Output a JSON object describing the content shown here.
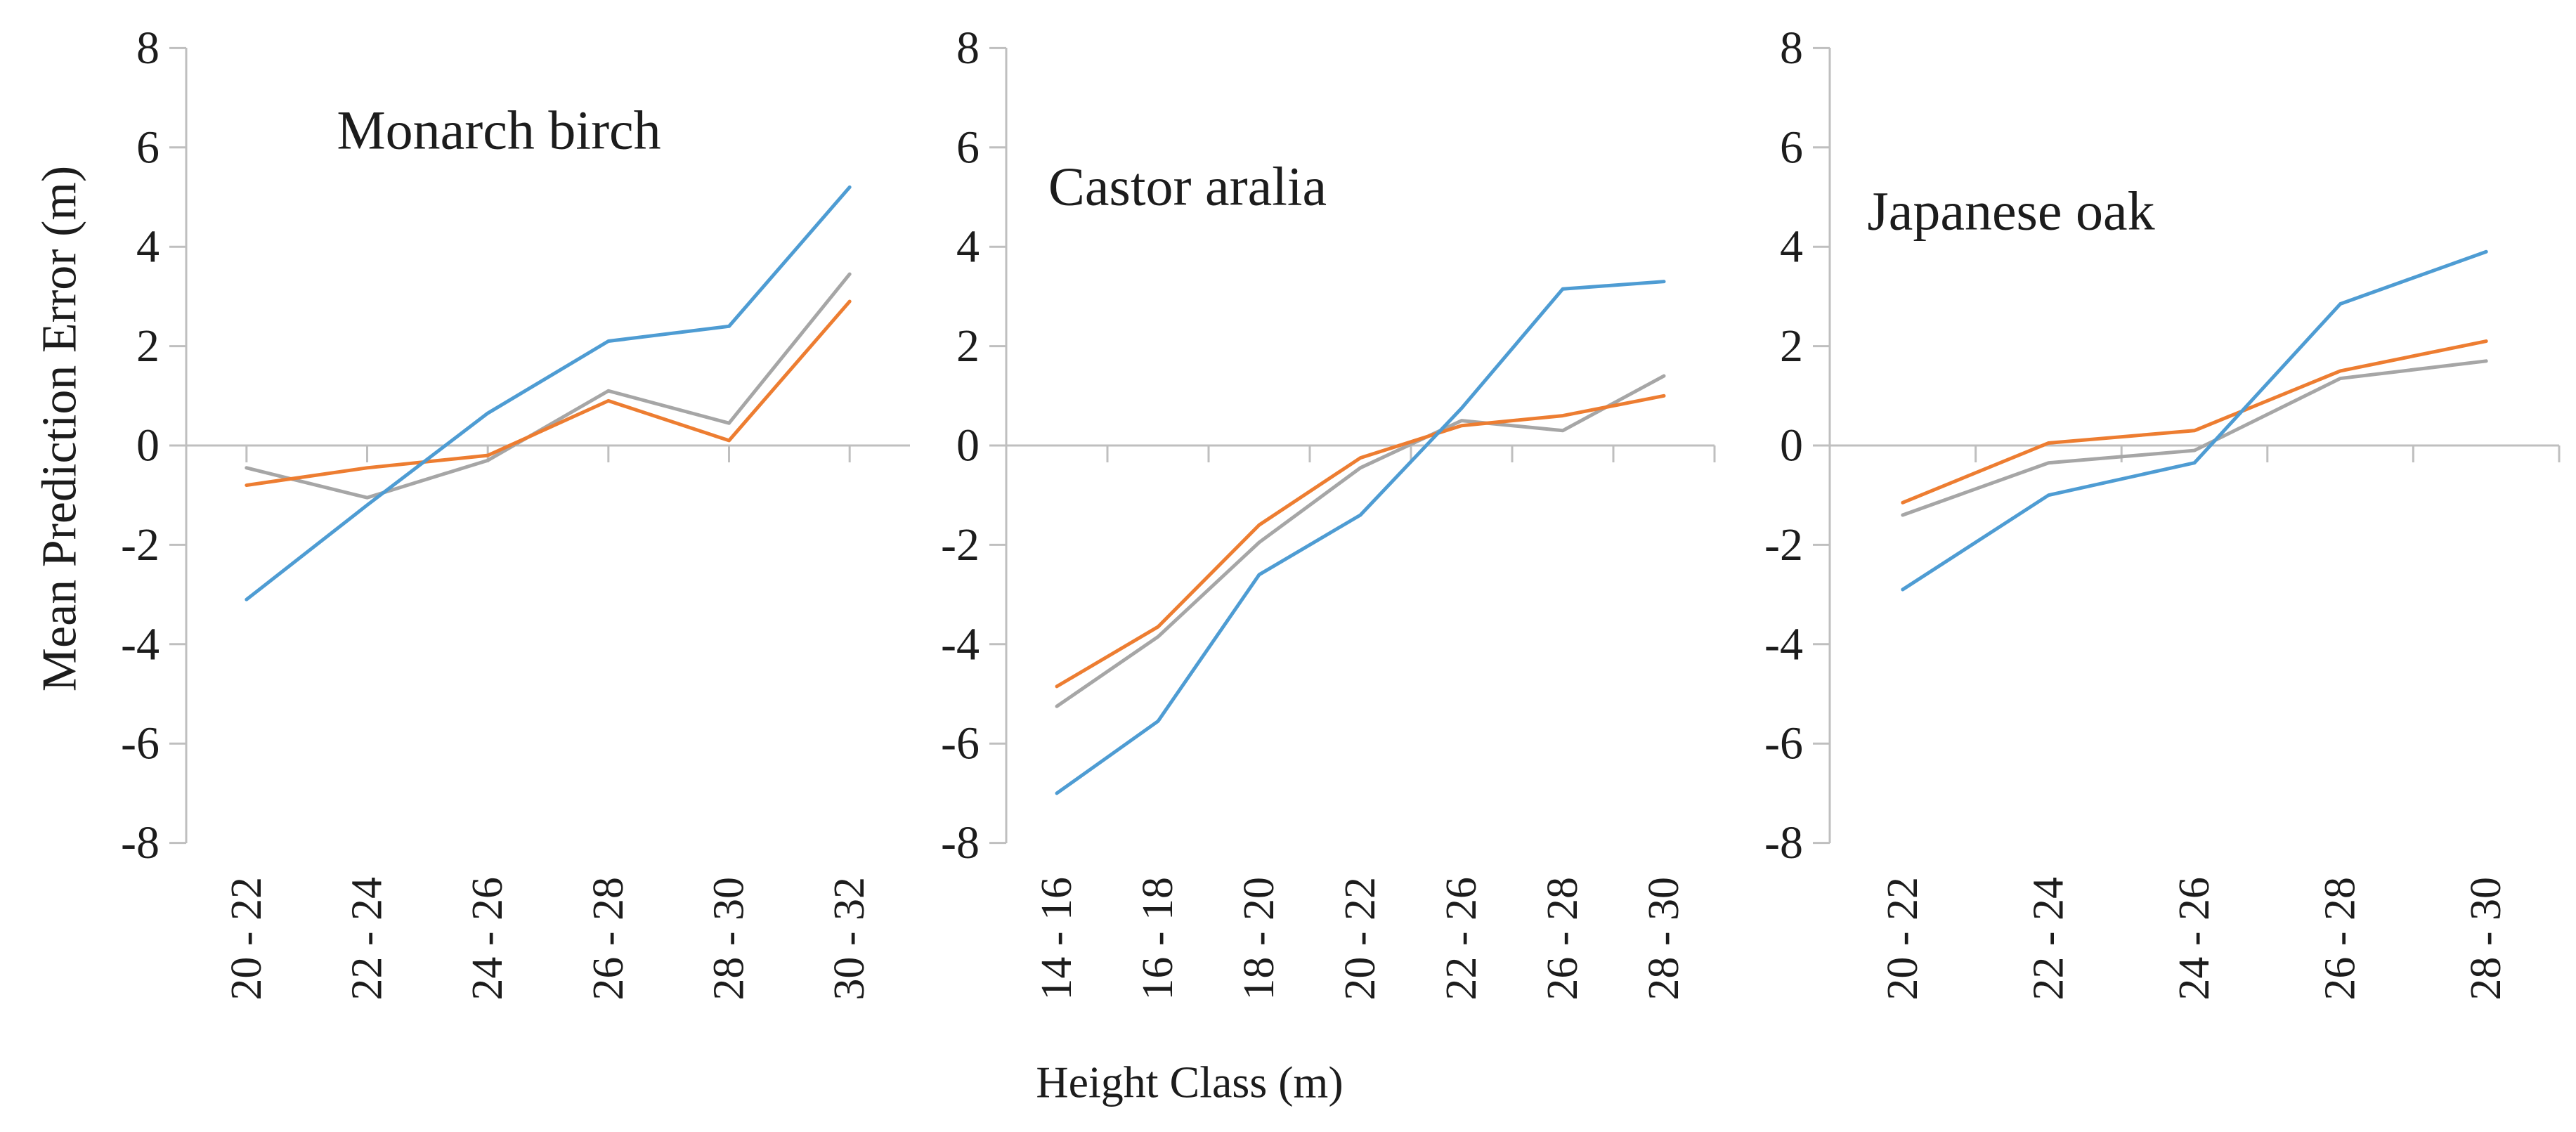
{
  "figure": {
    "xlabel": "Height Class (m)",
    "ylabel": "Mean Prediction Error (m)",
    "axis_color": "#bfbfbf",
    "series_colors": {
      "blue": "#4E9CD3",
      "orange": "#ED7D31",
      "gray": "#A6A6A6"
    }
  },
  "chart_data": [
    {
      "type": "line",
      "title": "Monarch birch",
      "ylabel": "Mean Prediction Error (m)",
      "xlabel": "",
      "ylim": [
        -8,
        8
      ],
      "ytick_step": 2,
      "grid": "off",
      "legend": "none",
      "yticks": [
        "8",
        "6",
        "4",
        "2",
        "0",
        "-2",
        "-4",
        "-6",
        "-8"
      ],
      "categories": [
        "20 - 22",
        "22 - 24",
        "24 - 26",
        "26 - 28",
        "28 - 30",
        "30 - 32"
      ],
      "series": [
        {
          "name": "blue",
          "color": "#4E9CD3",
          "values": [
            -3.1,
            -1.2,
            0.65,
            2.1,
            2.4,
            5.2
          ]
        },
        {
          "name": "orange",
          "color": "#ED7D31",
          "values": [
            -0.8,
            -0.45,
            -0.2,
            0.9,
            0.1,
            2.9
          ]
        },
        {
          "name": "gray",
          "color": "#A6A6A6",
          "values": [
            -0.45,
            -1.05,
            -0.3,
            1.1,
            0.45,
            3.45
          ]
        }
      ]
    },
    {
      "type": "line",
      "title": "Castor aralia",
      "ylabel": "",
      "xlabel": "",
      "ylim": [
        -8,
        8
      ],
      "ytick_step": 2,
      "grid": "off",
      "legend": "none",
      "yticks": [
        "8",
        "6",
        "4",
        "2",
        "0",
        "-2",
        "-4",
        "-6",
        "-8"
      ],
      "categories": [
        "14 - 16",
        "16 - 18",
        "18 - 20",
        "20 - 22",
        "22 - 26",
        "26 - 28",
        "28 - 30"
      ],
      "series": [
        {
          "name": "blue",
          "color": "#4E9CD3",
          "values": [
            -7.0,
            -5.55,
            -2.6,
            -1.4,
            0.75,
            3.15,
            3.3
          ]
        },
        {
          "name": "orange",
          "color": "#ED7D31",
          "values": [
            -4.85,
            -3.65,
            -1.6,
            -0.25,
            0.4,
            0.6,
            1.0
          ]
        },
        {
          "name": "gray",
          "color": "#A6A6A6",
          "values": [
            -5.25,
            -3.85,
            -1.95,
            -0.45,
            0.5,
            0.3,
            1.4
          ]
        }
      ]
    },
    {
      "type": "line",
      "title": "Japanese oak",
      "ylabel": "",
      "xlabel": "",
      "ylim": [
        -8,
        8
      ],
      "ytick_step": 2,
      "grid": "off",
      "legend": "none",
      "yticks": [
        "8",
        "6",
        "4",
        "2",
        "0",
        "-2",
        "-4",
        "-6",
        "-8"
      ],
      "categories": [
        "20 - 22",
        "22 - 24",
        "24 - 26",
        "26 - 28",
        "28 - 30"
      ],
      "series": [
        {
          "name": "blue",
          "color": "#4E9CD3",
          "values": [
            -2.9,
            -1.0,
            -0.35,
            2.85,
            3.9
          ]
        },
        {
          "name": "orange",
          "color": "#ED7D31",
          "values": [
            -1.15,
            0.05,
            0.3,
            1.5,
            2.1
          ]
        },
        {
          "name": "gray",
          "color": "#A6A6A6",
          "values": [
            -1.4,
            -0.35,
            -0.1,
            1.35,
            1.7
          ]
        }
      ]
    }
  ]
}
